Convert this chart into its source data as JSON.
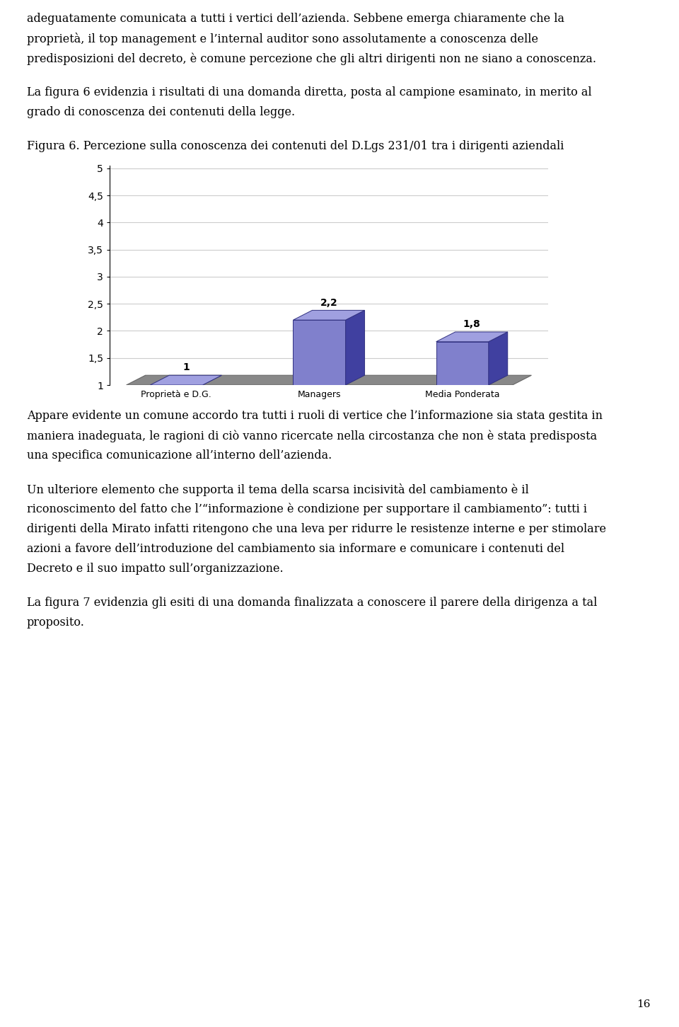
{
  "title": "Figura 6. Percezione sulla conoscenza dei contenuti del D.Lgs 231/01 tra i dirigenti aziendali",
  "categories": [
    "Proprietà e D.G.",
    "Managers",
    "Media Ponderata"
  ],
  "values": [
    1.0,
    2.2,
    1.8
  ],
  "bar_color_front": "#8080cc",
  "bar_color_side": "#4040a0",
  "bar_color_top": "#a0a0e0",
  "floor_color": "#888888",
  "floor_color_light": "#aaaaaa",
  "background_color": "#ffffff",
  "plot_bg_color": "#ffffff",
  "ylim_min": 1.0,
  "ylim_max": 5.0,
  "yticks": [
    1.0,
    1.5,
    2.0,
    2.5,
    3.0,
    3.5,
    4.0,
    4.5,
    5.0
  ],
  "ytick_labels": [
    "1",
    "1,5",
    "2",
    "2,5",
    "3",
    "3,5",
    "4",
    "4,5",
    "5"
  ],
  "value_labels": [
    "1",
    "2,2",
    "1,8"
  ],
  "para1_lines": [
    "adeguatamente comunicata a tutti i vertici dell’azienda. Sebbene emerga chiaramente che la",
    "proprietà, il top management e l’internal auditor sono assolutamente a conoscenza delle",
    "predisposizioni del decreto, è comune percezione che gli altri dirigenti non ne siano a conoscenza."
  ],
  "para2_lines": [
    "La figura 6 evidenzia i risultati di una domanda diretta, posta al campione esaminato, in merito al",
    "grado di conoscenza dei contenuti della legge."
  ],
  "fig_caption": "Figura 6. Percezione sulla conoscenza dei contenuti del D.Lgs 231/01 tra i dirigenti aziendali",
  "para3_lines": [
    "Appare evidente un comune accordo tra tutti i ruoli di vertice che l’informazione sia stata gestita in",
    "maniera inadeguata, le ragioni di ciò vanno ricercate nella circostanza che non è stata predisposta",
    "una specifica comunicazione all’interno dell’azienda."
  ],
  "para4_lines": [
    "Un ulteriore elemento che supporta il tema della scarsa incisività del cambiamento è il",
    "riconoscimento del fatto che l’“informazione è condizione per supportare il cambiamento”: tutti i",
    "dirigenti della Mirato infatti ritengono che una leva per ridurre le resistenze interne e per stimolare",
    "azioni a favore dell’introduzione del cambiamento sia informare e comunicare i contenuti del",
    "Decreto e il suo impatto sull’organizzazione."
  ],
  "para5_lines": [
    "La figura 7 evidenzia gli esiti di una domanda finalizzata a conoscere il parere della dirigenza a tal",
    "proposito."
  ],
  "page_number": "16"
}
